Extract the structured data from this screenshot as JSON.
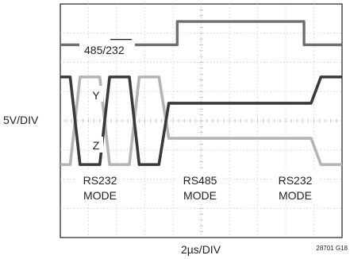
{
  "chart_data": {
    "type": "line",
    "title": "",
    "xlabel": "2µs/DIV",
    "ylabel": "5V/DIV",
    "grid": true,
    "divisions": {
      "x": 10,
      "y": 8
    },
    "x_units": "µs",
    "xlim": [
      0,
      20
    ],
    "series": [
      {
        "name": "485/232",
        "color": "#6d6e71",
        "x": [
          0,
          8.3,
          8.3,
          17.3,
          17.3,
          20
        ],
        "y": [
          2.6,
          2.6,
          3.4,
          3.4,
          2.6,
          2.6
        ]
      },
      {
        "name": "Y",
        "color": "#3a3a3c",
        "x": [
          0,
          0.7,
          1.4,
          2.8,
          3.5,
          4.9,
          5.6,
          7.0,
          7.7,
          8.4,
          17.8,
          18.5,
          19.2,
          20
        ],
        "y": [
          1.5,
          1.5,
          -1.5,
          -1.5,
          1.5,
          1.5,
          -1.5,
          -1.5,
          0.6,
          0.6,
          0.6,
          1.5,
          1.5,
          1.5
        ]
      },
      {
        "name": "Z",
        "color": "#b2b4b6",
        "x": [
          0,
          0.7,
          1.4,
          2.8,
          3.5,
          4.9,
          5.6,
          7.0,
          7.7,
          8.4,
          17.8,
          18.5,
          19.2,
          20
        ],
        "y": [
          -1.5,
          -1.5,
          1.5,
          1.5,
          -1.5,
          -1.5,
          1.5,
          1.5,
          -0.6,
          -0.6,
          -0.6,
          -1.5,
          -1.5,
          -1.5
        ]
      }
    ],
    "annotations": {
      "sel": "485/232",
      "y": "Y",
      "z": "Z",
      "mode_left": [
        "RS232",
        "MODE"
      ],
      "mode_mid": [
        "RS485",
        "MODE"
      ],
      "mode_right": [
        "RS232",
        "MODE"
      ]
    },
    "figure_id": "28701 G18"
  }
}
